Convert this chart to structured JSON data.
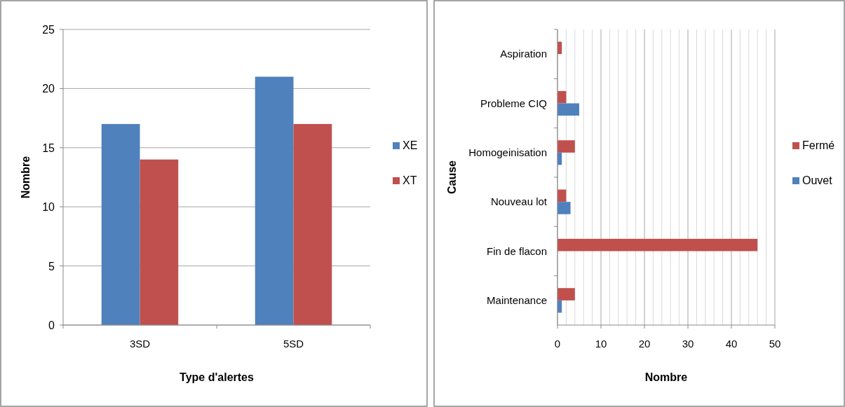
{
  "chart_data": [
    {
      "type": "bar",
      "xlabel": "Type d'alertes",
      "ylabel": "Nombre",
      "categories": [
        "3SD",
        "5SD"
      ],
      "series": [
        {
          "name": "XE",
          "color": "#4f81bd",
          "values": [
            17,
            21
          ]
        },
        {
          "name": "XT",
          "color": "#c0504d",
          "values": [
            14,
            17
          ]
        }
      ],
      "ylim": [
        0,
        25
      ],
      "yticks": [
        0,
        5,
        10,
        15,
        20,
        25
      ],
      "grid": "y",
      "legend": "right"
    },
    {
      "type": "bar",
      "orientation": "horizontal",
      "xlabel": "Nombre",
      "ylabel": "Cause",
      "categories": [
        "Aspiration",
        "Probleme CIQ",
        "Homogeinisation",
        "Nouveau lot",
        "Fin de flacon",
        "Maintenance"
      ],
      "series": [
        {
          "name": "Fermé",
          "color": "#c0504d",
          "values": [
            1,
            2,
            4,
            2,
            46,
            4
          ]
        },
        {
          "name": "Ouvet",
          "color": "#4f81bd",
          "values": [
            0,
            5,
            1,
            3,
            0,
            1
          ]
        }
      ],
      "xlim": [
        0,
        50
      ],
      "xticks": [
        0,
        {
          "value": 2,
          "label": null
        },
        {
          "value": 4,
          "label": null
        },
        {
          "value": 6,
          "label": null
        },
        {
          "value": 8,
          "label": null
        },
        10,
        {
          "value": 12,
          "label": null
        },
        {
          "value": 14,
          "label": null
        },
        {
          "value": 16,
          "label": null
        },
        {
          "value": 18,
          "label": null
        },
        20,
        {
          "value": 22,
          "label": null
        },
        {
          "value": 24,
          "label": null
        },
        {
          "value": 26,
          "label": null
        },
        {
          "value": 28,
          "label": null
        },
        30,
        {
          "value": 32,
          "label": null
        },
        {
          "value": 34,
          "label": null
        },
        {
          "value": 36,
          "label": null
        },
        {
          "value": 38,
          "label": null
        },
        40,
        {
          "value": 42,
          "label": null
        },
        {
          "value": 44,
          "label": null
        },
        {
          "value": 46,
          "label": null
        },
        {
          "value": 48,
          "label": null
        },
        50
      ],
      "grid": "x",
      "legend": "right"
    }
  ]
}
